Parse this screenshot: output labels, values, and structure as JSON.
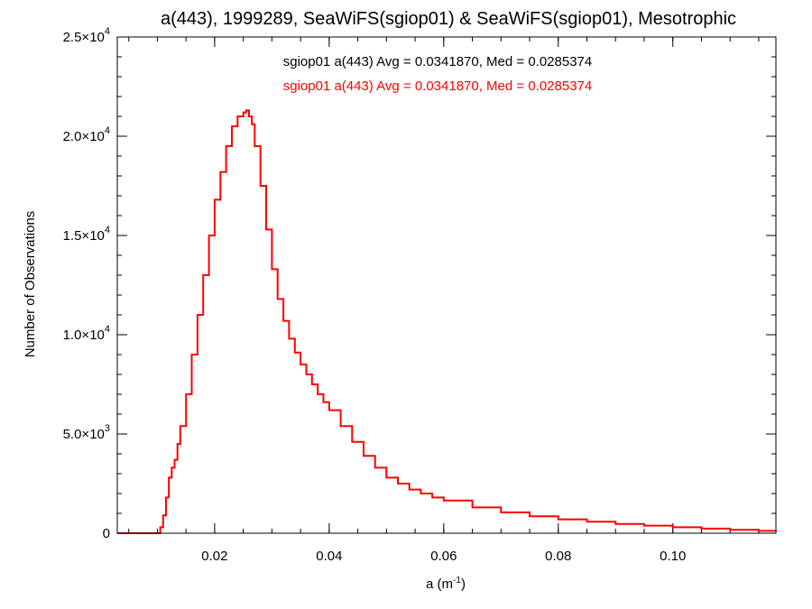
{
  "chart_data": {
    "type": "line",
    "step": true,
    "title": "a(443), 1999289, SeaWiFS(sgiop01) & SeaWiFS(sgiop01), Mesotrophic",
    "xlabel": "a (m",
    "xlabel_sup": "-1",
    "xlabel_end": ")",
    "ylabel": "Number of Observations",
    "xlim": [
      0.003,
      0.118
    ],
    "ylim": [
      0,
      25000
    ],
    "x_ticks": [
      {
        "value": 0.02,
        "label": "0.02"
      },
      {
        "value": 0.04,
        "label": "0.04"
      },
      {
        "value": 0.06,
        "label": "0.06"
      },
      {
        "value": 0.08,
        "label": "0.08"
      },
      {
        "value": 0.1,
        "label": "0.10"
      }
    ],
    "y_ticks": [
      {
        "value": 0,
        "mant": "0",
        "exp": ""
      },
      {
        "value": 5000,
        "mant": "5.0×10",
        "exp": "3"
      },
      {
        "value": 10000,
        "mant": "1.0×10",
        "exp": "4"
      },
      {
        "value": 15000,
        "mant": "1.5×10",
        "exp": "4"
      },
      {
        "value": 20000,
        "mant": "2.0×10",
        "exp": "4"
      },
      {
        "value": 25000,
        "mant": "2.5×10",
        "exp": "4"
      }
    ],
    "x_minor_step": 0.005,
    "y_minor_step": 1000,
    "legend": [
      {
        "text": "sgiop01 a(443) Avg = 0.0341870, Med = 0.0285374",
        "color": "#000000"
      },
      {
        "text": "sgiop01 a(443) Avg = 0.0341870, Med = 0.0285374",
        "color": "#ff0000"
      }
    ],
    "series": [
      {
        "color": "#ff0000",
        "x": [
          0.003,
          0.0095,
          0.0105,
          0.011,
          0.0115,
          0.012,
          0.0125,
          0.013,
          0.0135,
          0.014,
          0.015,
          0.016,
          0.017,
          0.018,
          0.019,
          0.02,
          0.021,
          0.022,
          0.023,
          0.024,
          0.025,
          0.0255,
          0.026,
          0.0265,
          0.027,
          0.028,
          0.029,
          0.03,
          0.031,
          0.032,
          0.033,
          0.034,
          0.035,
          0.036,
          0.037,
          0.038,
          0.039,
          0.04,
          0.042,
          0.044,
          0.046,
          0.048,
          0.05,
          0.052,
          0.054,
          0.056,
          0.058,
          0.06,
          0.065,
          0.07,
          0.075,
          0.08,
          0.085,
          0.09,
          0.095,
          0.1,
          0.105,
          0.11,
          0.115,
          0.118
        ],
        "y": [
          0,
          0,
          300,
          900,
          1800,
          2800,
          3300,
          3700,
          4500,
          5400,
          7000,
          9000,
          11000,
          13000,
          15000,
          16800,
          18200,
          19500,
          20500,
          21000,
          21200,
          21300,
          21000,
          20600,
          19500,
          17500,
          15300,
          13300,
          11800,
          10700,
          9800,
          9100,
          8500,
          8000,
          7500,
          7000,
          6600,
          6200,
          5400,
          4600,
          3900,
          3300,
          2800,
          2500,
          2200,
          2000,
          1800,
          1650,
          1300,
          1050,
          850,
          700,
          580,
          470,
          380,
          300,
          230,
          170,
          120,
          90
        ]
      }
    ]
  }
}
